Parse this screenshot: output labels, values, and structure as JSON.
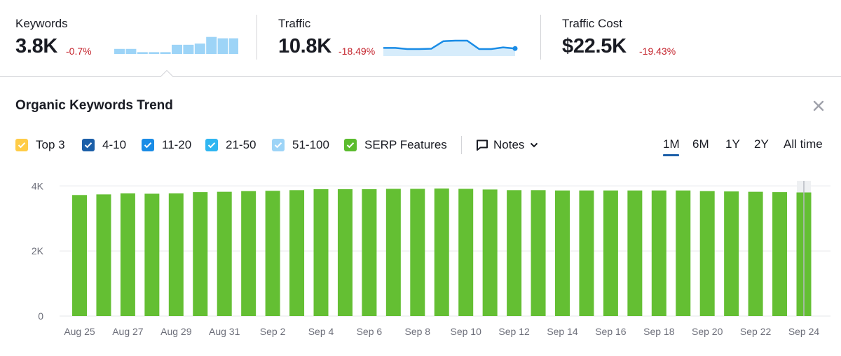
{
  "metrics": [
    {
      "label": "Keywords",
      "value": "3.8K",
      "delta": "-0.7%",
      "spark_type": "bars",
      "spark_values": [
        0.22,
        0.22,
        0.08,
        0.08,
        0.08,
        0.4,
        0.4,
        0.45,
        0.74,
        0.68,
        0.68,
        0.68
      ]
    },
    {
      "label": "Traffic",
      "value": "10.8K",
      "delta": "-18.49%",
      "spark_type": "area",
      "spark_values": [
        0.35,
        0.35,
        0.25,
        0.25,
        0.28,
        0.95,
        1.0,
        1.0,
        0.25,
        0.25,
        0.4,
        0.3
      ]
    },
    {
      "label": "Traffic Cost",
      "value": "$22.5K",
      "delta": "-19.43%"
    }
  ],
  "panel": {
    "title": "Organic Keywords Trend",
    "legend": [
      {
        "label": "Top 3",
        "color": "#ffcc47",
        "checked": true
      },
      {
        "label": "4-10",
        "color": "#1c5fa8",
        "checked": true
      },
      {
        "label": "11-20",
        "color": "#1a8ce6",
        "checked": true
      },
      {
        "label": "21-50",
        "color": "#2fb6f1",
        "checked": true
      },
      {
        "label": "51-100",
        "color": "#9dd4f7",
        "checked": true
      },
      {
        "label": "SERP Features",
        "color": "#5bbc2e",
        "checked": true
      }
    ],
    "notes_label": "Notes",
    "periods": [
      "1M",
      "6M",
      "1Y",
      "2Y",
      "All time"
    ],
    "active_period": "1M",
    "icons": {
      "close": "close-icon",
      "notes": "note-icon",
      "dropdown": "chevron-down-icon",
      "check": "check-icon"
    }
  },
  "chart_data": {
    "type": "bar",
    "series": [
      {
        "name": "SERP Features",
        "color": "#64bf33",
        "values": [
          3720,
          3740,
          3770,
          3760,
          3770,
          3810,
          3820,
          3840,
          3850,
          3870,
          3900,
          3900,
          3900,
          3910,
          3910,
          3920,
          3910,
          3890,
          3870,
          3870,
          3860,
          3860,
          3860,
          3860,
          3860,
          3860,
          3840,
          3830,
          3820,
          3810,
          3800
        ]
      }
    ],
    "y_ticks": [
      "0",
      "2K",
      "4K"
    ],
    "y_tick_values": [
      0,
      2000,
      4000
    ],
    "ylim": [
      0,
      4200
    ],
    "x_tick_labels": [
      "Aug 25",
      "Aug 27",
      "Aug 29",
      "Aug 31",
      "Sep 2",
      "Sep 4",
      "Sep 6",
      "Sep 8",
      "Sep 10",
      "Sep 12",
      "Sep 14",
      "Sep 16",
      "Sep 18",
      "Sep 20",
      "Sep 22",
      "Sep 24"
    ],
    "grid": true,
    "highlighted_index": 30
  }
}
